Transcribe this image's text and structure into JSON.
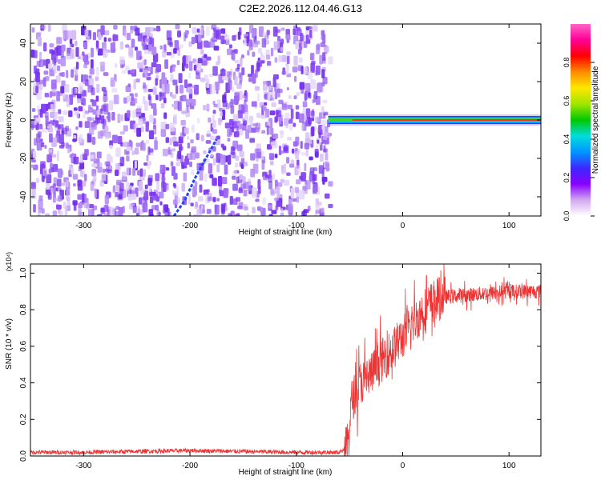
{
  "title": "C2E2.2026.112.04.46.G13",
  "chart_data": [
    {
      "type": "heatmap",
      "title": "C2E2.2026.112.04.46.G13",
      "xlabel": "Height of straight line (km)",
      "ylabel": "Frequency (Hz)",
      "xlim": [
        -350,
        130
      ],
      "ylim": [
        -50,
        50
      ],
      "xticks": [
        -300,
        -200,
        -100,
        0,
        100
      ],
      "yticks": [
        -40,
        -20,
        0,
        20,
        40
      ],
      "noise_region_x": [
        -350,
        -70
      ],
      "signal_trace": {
        "x_start": -70,
        "x_end": 130,
        "frequency_hz": 0
      },
      "doppler_track": [
        {
          "x": -215,
          "f": -50
        },
        {
          "x": -205,
          "f": -42
        },
        {
          "x": -195,
          "f": -30
        },
        {
          "x": -185,
          "f": -20
        },
        {
          "x": -175,
          "f": -10
        }
      ],
      "colorbar": {
        "label": "Normalized spectral amplitude",
        "range": [
          0,
          1
        ],
        "ticks": [
          "0.0",
          "0.2",
          "0.4",
          "0.6",
          "0.8"
        ],
        "colors": [
          "#ffffff",
          "#d2a8f0",
          "#8800ff",
          "#3c28ff",
          "#0096ff",
          "#00dcdc",
          "#00c800",
          "#a0e600",
          "#ffe600",
          "#ff8c00",
          "#ff0000",
          "#ff0096",
          "#ff64c8"
        ]
      }
    },
    {
      "type": "line",
      "xlabel": "Height of straight line (km)",
      "ylabel": "SNR (10 * v/v)",
      "y_multiplier": "(x10⁴)",
      "xlim": [
        -350,
        130
      ],
      "ylim": [
        0,
        1.05
      ],
      "xticks": [
        -300,
        -200,
        -100,
        0,
        100
      ],
      "yticks": [
        "0.0",
        "0.2",
        "0.4",
        "0.6",
        "0.8",
        "1.0"
      ],
      "color": "#ee3333",
      "series": [
        {
          "name": "SNR",
          "x": [
            -350,
            -300,
            -250,
            -200,
            -150,
            -100,
            -60,
            -52,
            -48,
            -40,
            -30,
            -20,
            -10,
            0,
            10,
            20,
            30,
            40,
            60,
            80,
            100,
            130
          ],
          "y": [
            0.02,
            0.02,
            0.025,
            0.03,
            0.025,
            0.02,
            0.02,
            0.05,
            0.3,
            0.4,
            0.45,
            0.52,
            0.58,
            0.65,
            0.73,
            0.8,
            0.85,
            0.87,
            0.88,
            0.89,
            0.9,
            0.9
          ]
        }
      ]
    }
  ]
}
